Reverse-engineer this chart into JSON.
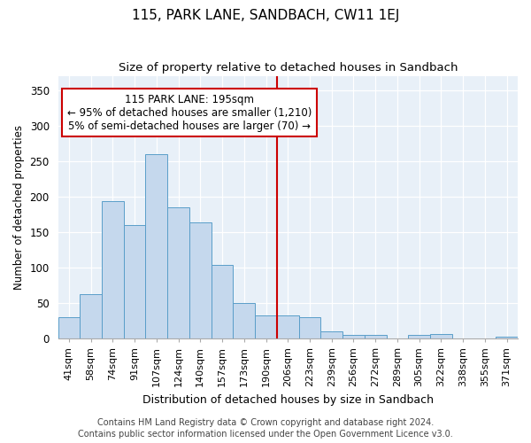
{
  "title": "115, PARK LANE, SANDBACH, CW11 1EJ",
  "subtitle": "Size of property relative to detached houses in Sandbach",
  "xlabel": "Distribution of detached houses by size in Sandbach",
  "ylabel": "Number of detached properties",
  "categories": [
    "41sqm",
    "58sqm",
    "74sqm",
    "91sqm",
    "107sqm",
    "124sqm",
    "140sqm",
    "157sqm",
    "173sqm",
    "190sqm",
    "206sqm",
    "223sqm",
    "239sqm",
    "256sqm",
    "272sqm",
    "289sqm",
    "305sqm",
    "322sqm",
    "338sqm",
    "355sqm",
    "371sqm"
  ],
  "values": [
    30,
    63,
    193,
    160,
    260,
    185,
    163,
    104,
    50,
    33,
    33,
    30,
    10,
    5,
    5,
    0,
    5,
    6,
    0,
    0,
    3
  ],
  "bar_color": "#c5d8ed",
  "bar_edge_color": "#5a9ec9",
  "vline_x_index": 9.5,
  "vline_color": "#cc0000",
  "annotation_text_line1": "115 PARK LANE: 195sqm",
  "annotation_text_line2": "← 95% of detached houses are smaller (1,210)",
  "annotation_text_line3": "5% of semi-detached houses are larger (70) →",
  "annotation_box_color": "white",
  "annotation_box_edge_color": "#cc0000",
  "ylim": [
    0,
    370
  ],
  "yticks": [
    0,
    50,
    100,
    150,
    200,
    250,
    300,
    350
  ],
  "plot_bg_color": "#e8f0f8",
  "grid_color": "#ffffff",
  "footer1": "Contains HM Land Registry data © Crown copyright and database right 2024.",
  "footer2": "Contains public sector information licensed under the Open Government Licence v3.0.",
  "title_fontsize": 11,
  "subtitle_fontsize": 9.5,
  "xlabel_fontsize": 9,
  "ylabel_fontsize": 8.5,
  "ytick_fontsize": 8.5,
  "xtick_fontsize": 8,
  "annotation_fontsize": 8.5,
  "footer_fontsize": 7
}
